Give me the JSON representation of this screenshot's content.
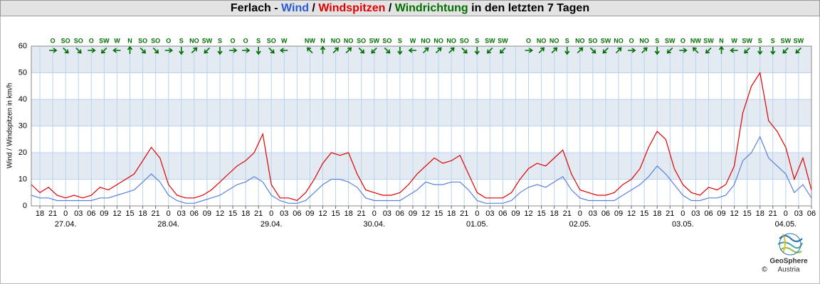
{
  "chart_data": {
    "type": "line",
    "title_parts": [
      {
        "text": "Ferlach - ",
        "color": "#000000"
      },
      {
        "text": "Wind",
        "color": "#2a5bd7"
      },
      {
        "text": " / ",
        "color": "#000000"
      },
      {
        "text": "Windspitzen",
        "color": "#e00000"
      },
      {
        "text": " / ",
        "color": "#000000"
      },
      {
        "text": "Windrichtung",
        "color": "#007000"
      },
      {
        "text": " in den letzten 7 Tagen",
        "color": "#000000"
      }
    ],
    "y_label": "Wind / Windspitzen in km/h",
    "x": [
      "26.04. 16:00",
      "26.04. 18:00",
      "26.04. 20:00",
      "26.04. 22:00",
      "27.04. 00:00",
      "27.04. 02:00",
      "27.04. 04:00",
      "27.04. 06:00",
      "27.04. 08:00",
      "27.04. 10:00",
      "27.04. 12:00",
      "27.04. 14:00",
      "27.04. 16:00",
      "27.04. 18:00",
      "27.04. 20:00",
      "27.04. 22:00",
      "28.04. 00:00",
      "28.04. 02:00",
      "28.04. 04:00",
      "28.04. 06:00",
      "28.04. 08:00",
      "28.04. 10:00",
      "28.04. 12:00",
      "28.04. 14:00",
      "28.04. 16:00",
      "28.04. 18:00",
      "28.04. 20:00",
      "28.04. 22:00",
      "29.04. 00:00",
      "29.04. 02:00",
      "29.04. 04:00",
      "29.04. 06:00",
      "29.04. 08:00",
      "29.04. 10:00",
      "29.04. 12:00",
      "29.04. 14:00",
      "29.04. 16:00",
      "29.04. 18:00",
      "29.04. 20:00",
      "29.04. 22:00",
      "30.04. 00:00",
      "30.04. 02:00",
      "30.04. 04:00",
      "30.04. 06:00",
      "30.04. 08:00",
      "30.04. 10:00",
      "30.04. 12:00",
      "30.04. 14:00",
      "30.04. 16:00",
      "30.04. 18:00",
      "30.04. 20:00",
      "30.04. 22:00",
      "01.05. 00:00",
      "01.05. 02:00",
      "01.05. 04:00",
      "01.05. 06:00",
      "01.05. 08:00",
      "01.05. 10:00",
      "01.05. 12:00",
      "01.05. 14:00",
      "01.05. 16:00",
      "01.05. 18:00",
      "01.05. 20:00",
      "01.05. 22:00",
      "02.05. 00:00",
      "02.05. 02:00",
      "02.05. 04:00",
      "02.05. 06:00",
      "02.05. 08:00",
      "02.05. 10:00",
      "02.05. 12:00",
      "02.05. 14:00",
      "02.05. 16:00",
      "02.05. 18:00",
      "02.05. 20:00",
      "02.05. 22:00",
      "03.05. 00:00",
      "03.05. 02:00",
      "03.05. 04:00",
      "03.05. 06:00",
      "03.05. 08:00",
      "03.05. 10:00",
      "03.05. 12:00",
      "03.05. 14:00",
      "03.05. 16:00",
      "03.05. 18:00",
      "03.05. 20:00",
      "03.05. 22:00",
      "04.05. 00:00",
      "04.05. 02:00",
      "04.05. 04:00",
      "04.05. 06:00"
    ],
    "series": [
      {
        "name": "Windspitzen",
        "color": "#e00000",
        "values": [
          8,
          5,
          7,
          4,
          3,
          4,
          3,
          4,
          7,
          6,
          8,
          10,
          12,
          17,
          22,
          18,
          8,
          4,
          3,
          3,
          4,
          6,
          9,
          12,
          15,
          17,
          20,
          27,
          8,
          3,
          3,
          2,
          5,
          10,
          16,
          20,
          19,
          20,
          12,
          6,
          5,
          4,
          4,
          5,
          8,
          12,
          15,
          18,
          16,
          17,
          19,
          12,
          5,
          3,
          3,
          3,
          5,
          10,
          14,
          16,
          15,
          18,
          21,
          12,
          6,
          5,
          4,
          4,
          5,
          8,
          10,
          14,
          22,
          28,
          25,
          14,
          8,
          5,
          4,
          7,
          6,
          8,
          15,
          35,
          45,
          50,
          32,
          28,
          22,
          10,
          18,
          6
        ]
      },
      {
        "name": "Wind",
        "color": "#5a80dd",
        "values": [
          4,
          3,
          3,
          2,
          2,
          2,
          2,
          2,
          3,
          3,
          4,
          5,
          6,
          9,
          12,
          9,
          4,
          2,
          1,
          1,
          2,
          3,
          4,
          6,
          8,
          9,
          11,
          9,
          4,
          2,
          1,
          1,
          2,
          5,
          8,
          10,
          10,
          9,
          7,
          3,
          2,
          2,
          2,
          2,
          4,
          6,
          9,
          8,
          8,
          9,
          9,
          6,
          2,
          1,
          1,
          1,
          2,
          5,
          7,
          8,
          7,
          9,
          11,
          6,
          3,
          2,
          2,
          2,
          2,
          4,
          6,
          8,
          11,
          15,
          12,
          8,
          4,
          2,
          2,
          3,
          3,
          4,
          8,
          17,
          20,
          26,
          18,
          15,
          12,
          5,
          8,
          3
        ]
      }
    ],
    "xlim": [
      "26.04. 16:00",
      "04.05. 06:00"
    ],
    "ylim": [
      0,
      60
    ],
    "yticks": [
      0,
      10,
      20,
      30,
      40,
      50,
      60
    ],
    "grid": true,
    "xticks": [
      {
        "value": "26.04. 18:00",
        "label": "18"
      },
      {
        "value": "26.04. 21:00",
        "label": "21"
      },
      {
        "value": "27.04. 00:00",
        "label": "0"
      },
      {
        "value": "27.04. 03:00",
        "label": "03"
      },
      {
        "value": "27.04. 06:00",
        "label": "06"
      },
      {
        "value": "27.04. 09:00",
        "label": "09"
      },
      {
        "value": "27.04. 12:00",
        "label": "12"
      },
      {
        "value": "27.04. 15:00",
        "label": "15"
      },
      {
        "value": "27.04. 18:00",
        "label": "18"
      },
      {
        "value": "27.04. 21:00",
        "label": "21"
      },
      {
        "value": "28.04. 00:00",
        "label": "0"
      },
      {
        "value": "28.04. 03:00",
        "label": "03"
      },
      {
        "value": "28.04. 06:00",
        "label": "06"
      },
      {
        "value": "28.04. 09:00",
        "label": "09"
      },
      {
        "value": "28.04. 12:00",
        "label": "12"
      },
      {
        "value": "28.04. 15:00",
        "label": "15"
      },
      {
        "value": "28.04. 18:00",
        "label": "18"
      },
      {
        "value": "28.04. 21:00",
        "label": "21"
      },
      {
        "value": "29.04. 00:00",
        "label": "0"
      },
      {
        "value": "29.04. 03:00",
        "label": "03"
      },
      {
        "value": "29.04. 06:00",
        "label": "06"
      },
      {
        "value": "29.04. 09:00",
        "label": "09"
      },
      {
        "value": "29.04. 12:00",
        "label": "12"
      },
      {
        "value": "29.04. 15:00",
        "label": "15"
      },
      {
        "value": "29.04. 18:00",
        "label": "18"
      },
      {
        "value": "29.04. 21:00",
        "label": "21"
      },
      {
        "value": "30.04. 00:00",
        "label": "0"
      },
      {
        "value": "30.04. 03:00",
        "label": "03"
      },
      {
        "value": "30.04. 06:00",
        "label": "06"
      },
      {
        "value": "30.04. 09:00",
        "label": "09"
      },
      {
        "value": "30.04. 12:00",
        "label": "12"
      },
      {
        "value": "30.04. 15:00",
        "label": "15"
      },
      {
        "value": "30.04. 18:00",
        "label": "18"
      },
      {
        "value": "30.04. 21:00",
        "label": "21"
      },
      {
        "value": "01.05. 00:00",
        "label": "0"
      },
      {
        "value": "01.05. 03:00",
        "label": "03"
      },
      {
        "value": "01.05. 06:00",
        "label": "06"
      },
      {
        "value": "01.05. 09:00",
        "label": "09"
      },
      {
        "value": "01.05. 12:00",
        "label": "12"
      },
      {
        "value": "01.05. 15:00",
        "label": "15"
      },
      {
        "value": "01.05. 18:00",
        "label": "18"
      },
      {
        "value": "01.05. 21:00",
        "label": "21"
      },
      {
        "value": "02.05. 00:00",
        "label": "0"
      },
      {
        "value": "02.05. 03:00",
        "label": "03"
      },
      {
        "value": "02.05. 06:00",
        "label": "06"
      },
      {
        "value": "02.05. 09:00",
        "label": "09"
      },
      {
        "value": "02.05. 12:00",
        "label": "12"
      },
      {
        "value": "02.05. 15:00",
        "label": "15"
      },
      {
        "value": "02.05. 18:00",
        "label": "18"
      },
      {
        "value": "02.05. 21:00",
        "label": "21"
      },
      {
        "value": "03.05. 00:00",
        "label": "0"
      },
      {
        "value": "03.05. 03:00",
        "label": "03"
      },
      {
        "value": "03.05. 06:00",
        "label": "06"
      },
      {
        "value": "03.05. 09:00",
        "label": "09"
      },
      {
        "value": "03.05. 12:00",
        "label": "12"
      },
      {
        "value": "03.05. 15:00",
        "label": "15"
      },
      {
        "value": "03.05. 18:00",
        "label": "18"
      },
      {
        "value": "03.05. 21:00",
        "label": "21"
      },
      {
        "value": "04.05. 00:00",
        "label": "0"
      },
      {
        "value": "04.05. 03:00",
        "label": "03"
      },
      {
        "value": "04.05. 06:00",
        "label": "06"
      }
    ],
    "xdates": [
      {
        "value": "27.04. 00:00",
        "label": "27.04."
      },
      {
        "value": "28.04. 00:00",
        "label": "28.04."
      },
      {
        "value": "29.04. 00:00",
        "label": "29.04."
      },
      {
        "value": "30.04. 00:00",
        "label": "30.04."
      },
      {
        "value": "01.05. 00:00",
        "label": "01.05."
      },
      {
        "value": "02.05. 00:00",
        "label": "02.05."
      },
      {
        "value": "03.05. 00:00",
        "label": "03.05."
      },
      {
        "value": "04.05. 00:00",
        "label": "04.05."
      }
    ],
    "wind_direction": [
      null,
      "O",
      "SO",
      "SO",
      "O",
      "SW",
      "W",
      "N",
      "SO",
      "SO",
      "O",
      "S",
      "NO",
      "SW",
      "S",
      "O",
      "O",
      "S",
      "SO",
      "W",
      null,
      "NW",
      "N",
      "NO",
      "NO",
      "SO",
      "SW",
      "SO",
      "S",
      "W",
      "NO",
      "NO",
      "NO",
      "SO",
      "S",
      "SW",
      "SW",
      null,
      "O",
      "NO",
      "NO",
      "S",
      "NO",
      "SO",
      "SW",
      "NO",
      "O",
      "NO",
      "S",
      "SW",
      "O",
      "NW",
      "SW",
      "N",
      "W",
      "SW",
      "S",
      "S",
      "SW",
      "SW",
      null
    ],
    "direction_color": "#007000"
  },
  "logo": {
    "name": "GeoSphere",
    "sub": "Austria",
    "copyright": "©"
  }
}
